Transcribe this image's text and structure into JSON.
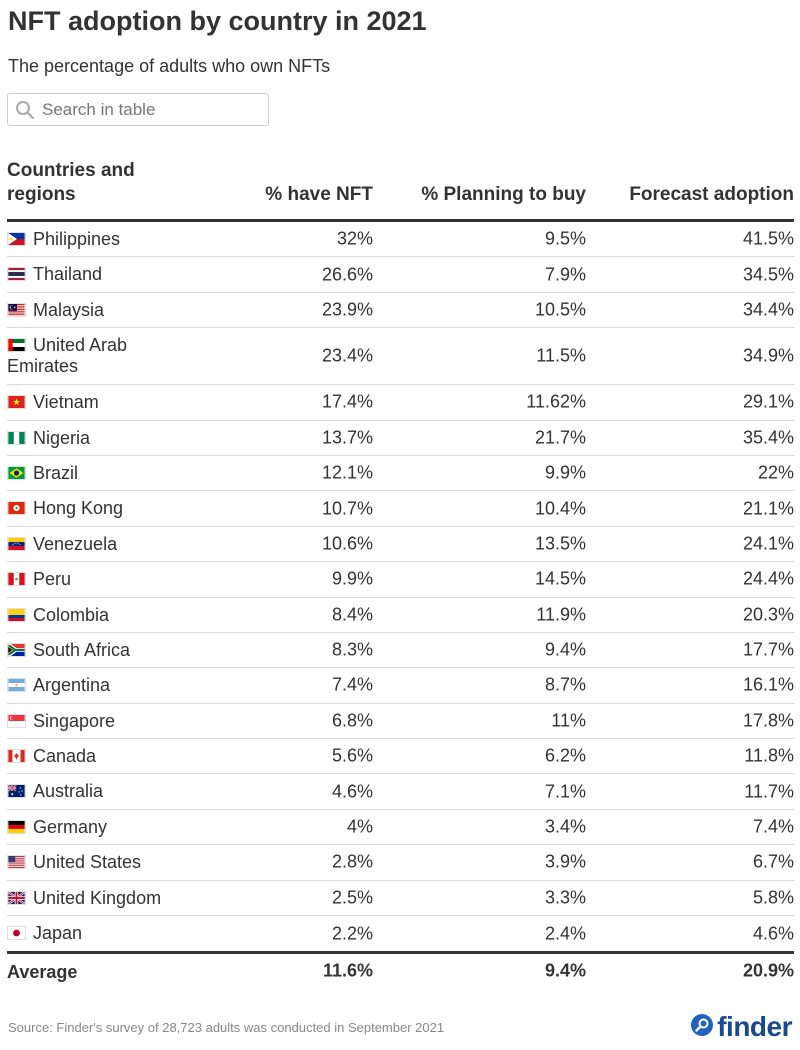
{
  "title": "NFT adoption by country in 2021",
  "subtitle": "The percentage of adults who own NFTs",
  "search": {
    "placeholder": "Search in table",
    "icon": "search-icon"
  },
  "chart_data": {
    "type": "table",
    "columns": [
      "Countries and regions",
      "% have NFT",
      "% Planning to buy",
      "Forecast adoption"
    ],
    "rows": [
      {
        "country": "Philippines",
        "flag": "philippines",
        "have": "32%",
        "planning": "9.5%",
        "forecast": "41.5%"
      },
      {
        "country": "Thailand",
        "flag": "thailand",
        "have": "26.6%",
        "planning": "7.9%",
        "forecast": "34.5%"
      },
      {
        "country": "Malaysia",
        "flag": "malaysia",
        "have": "23.9%",
        "planning": "10.5%",
        "forecast": "34.4%"
      },
      {
        "country": "United Arab Emirates",
        "flag": "uae",
        "have": "23.4%",
        "planning": "11.5%",
        "forecast": "34.9%"
      },
      {
        "country": "Vietnam",
        "flag": "vietnam",
        "have": "17.4%",
        "planning": "11.62%",
        "forecast": "29.1%"
      },
      {
        "country": "Nigeria",
        "flag": "nigeria",
        "have": "13.7%",
        "planning": "21.7%",
        "forecast": "35.4%"
      },
      {
        "country": "Brazil",
        "flag": "brazil",
        "have": "12.1%",
        "planning": "9.9%",
        "forecast": "22%"
      },
      {
        "country": "Hong Kong",
        "flag": "hongkong",
        "have": "10.7%",
        "planning": "10.4%",
        "forecast": "21.1%"
      },
      {
        "country": "Venezuela",
        "flag": "venezuela",
        "have": "10.6%",
        "planning": "13.5%",
        "forecast": "24.1%"
      },
      {
        "country": "Peru",
        "flag": "peru",
        "have": "9.9%",
        "planning": "14.5%",
        "forecast": "24.4%"
      },
      {
        "country": "Colombia",
        "flag": "colombia",
        "have": "8.4%",
        "planning": "11.9%",
        "forecast": "20.3%"
      },
      {
        "country": "South Africa",
        "flag": "southafrica",
        "have": "8.3%",
        "planning": "9.4%",
        "forecast": "17.7%"
      },
      {
        "country": "Argentina",
        "flag": "argentina",
        "have": "7.4%",
        "planning": "8.7%",
        "forecast": "16.1%"
      },
      {
        "country": "Singapore",
        "flag": "singapore",
        "have": "6.8%",
        "planning": "11%",
        "forecast": "17.8%"
      },
      {
        "country": "Canada",
        "flag": "canada",
        "have": "5.6%",
        "planning": "6.2%",
        "forecast": "11.8%"
      },
      {
        "country": "Australia",
        "flag": "australia",
        "have": "4.6%",
        "planning": "7.1%",
        "forecast": "11.7%"
      },
      {
        "country": "Germany",
        "flag": "germany",
        "have": "4%",
        "planning": "3.4%",
        "forecast": "7.4%"
      },
      {
        "country": "United States",
        "flag": "usa",
        "have": "2.8%",
        "planning": "3.9%",
        "forecast": "6.7%"
      },
      {
        "country": "United Kingdom",
        "flag": "uk",
        "have": "2.5%",
        "planning": "3.3%",
        "forecast": "5.8%"
      },
      {
        "country": "Japan",
        "flag": "japan",
        "have": "2.2%",
        "planning": "2.4%",
        "forecast": "4.6%"
      }
    ],
    "footer": {
      "label": "Average",
      "have": "11.6%",
      "planning": "9.4%",
      "forecast": "20.9%"
    }
  },
  "source": "Source: Finder's survey of 28,723 adults was conducted in September 2021",
  "logo": {
    "text": "finder",
    "icon": "finder-logo-icon",
    "color": "#1a4a8a"
  }
}
